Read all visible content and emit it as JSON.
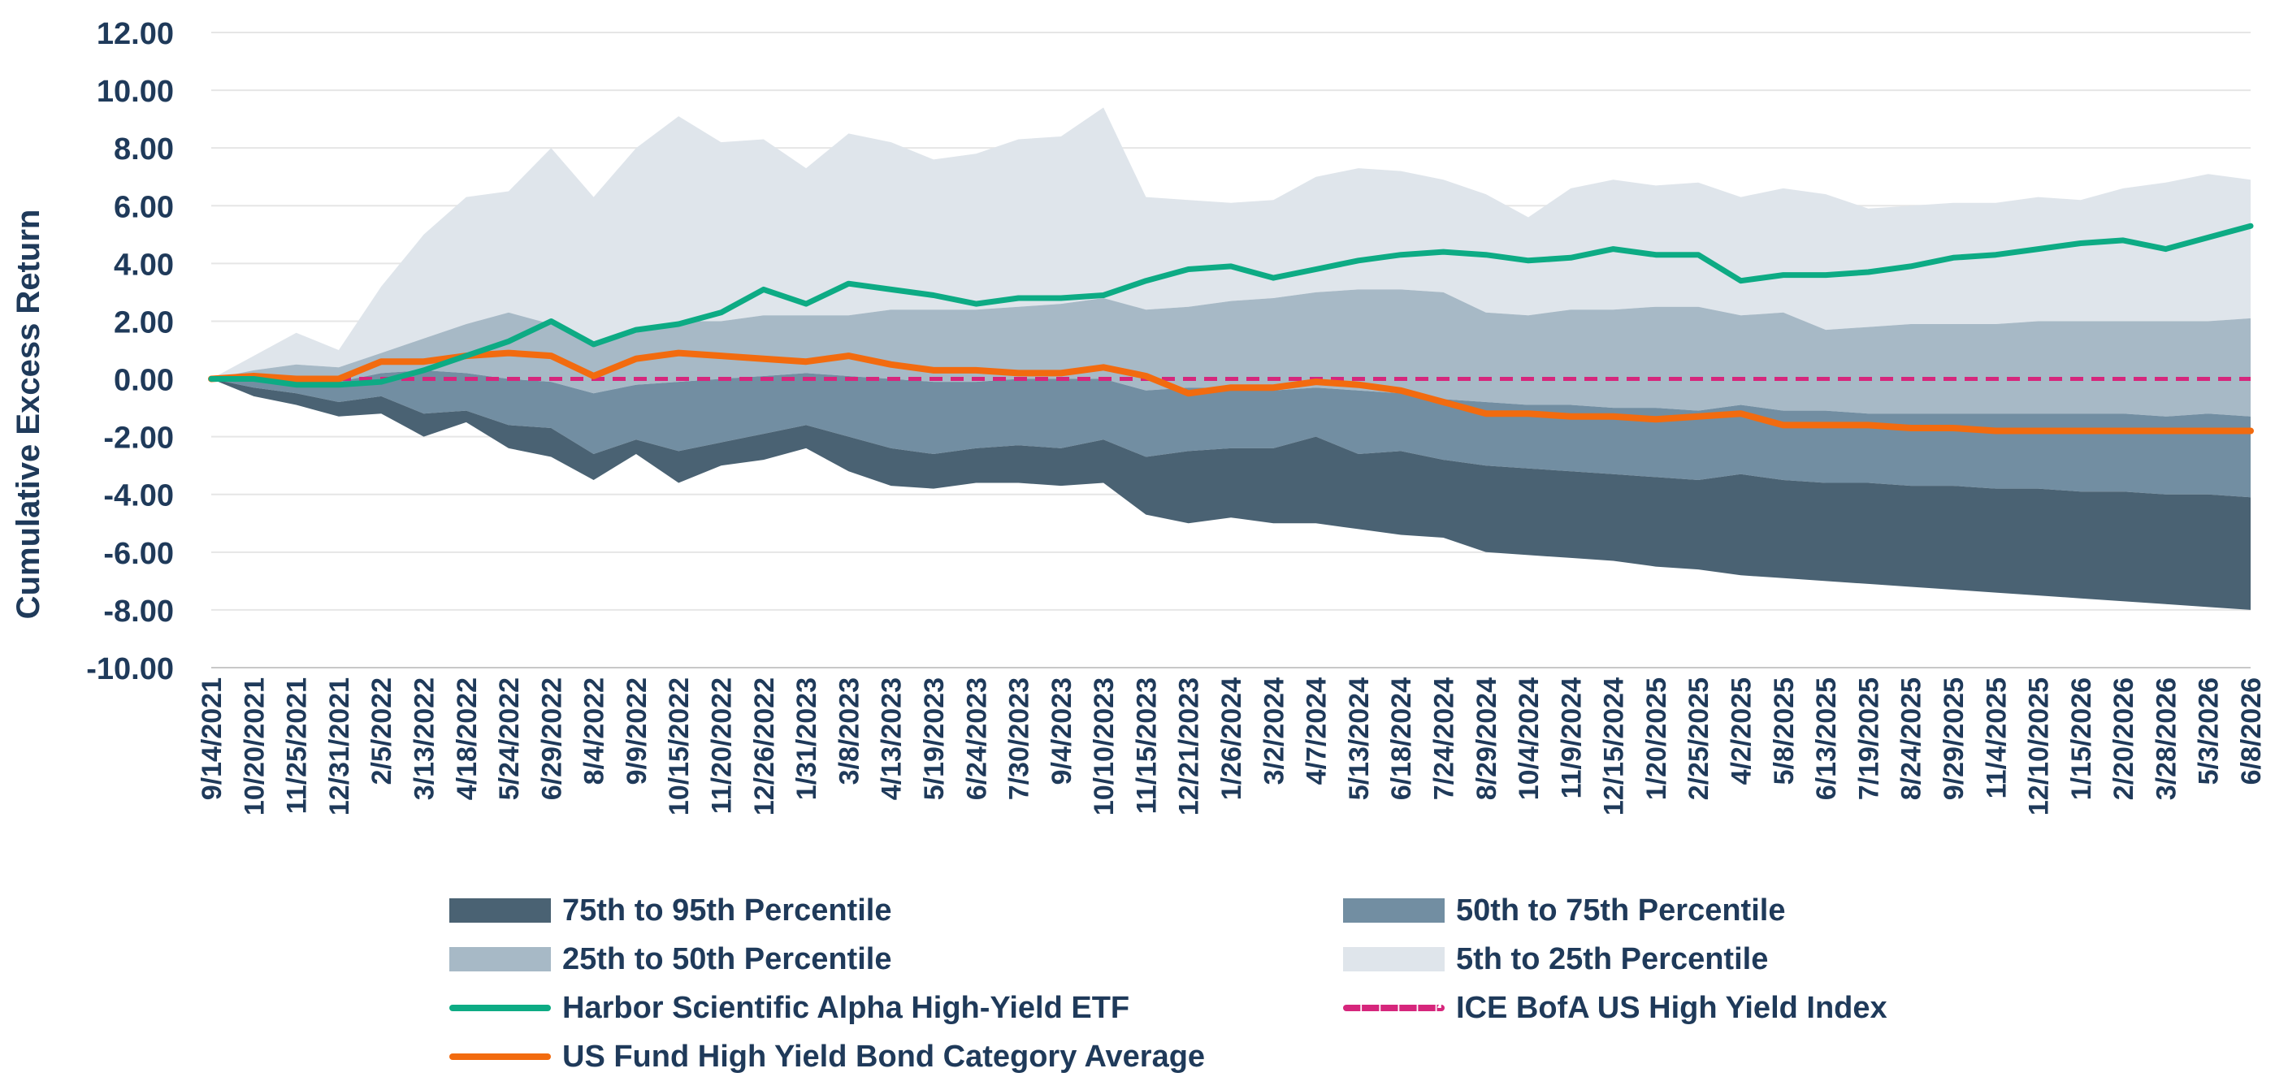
{
  "chart_data": {
    "type": "area",
    "ylabel": "Cumulative Excess Return",
    "xlabel": "",
    "ylim": [
      -10,
      12
    ],
    "y_ticks": [
      "12.00",
      "10.00",
      "8.00",
      "6.00",
      "4.00",
      "2.00",
      "0.00",
      "-2.00",
      "-4.00",
      "-6.00",
      "-8.00",
      "-10.00"
    ],
    "grid": "horizontal",
    "legend_position": "bottom",
    "x_tick_labels": [
      "9/14/2021",
      "10/20/2021",
      "11/25/2021",
      "12/31/2021",
      "2/5/2022",
      "3/13/2022",
      "4/18/2022",
      "5/24/2022",
      "6/29/2022",
      "8/4/2022",
      "9/9/2022",
      "10/15/2022",
      "11/20/2022",
      "12/26/2022",
      "1/31/2023",
      "3/8/2023",
      "4/13/2023",
      "5/19/2023",
      "6/24/2023",
      "7/30/2023",
      "9/4/2023",
      "10/10/2023",
      "11/15/2023",
      "12/21/2023",
      "1/26/2024",
      "3/2/2024",
      "4/7/2024",
      "5/13/2024",
      "6/18/2024",
      "7/24/2024",
      "8/29/2024",
      "10/4/2024",
      "11/9/2024",
      "12/15/2024",
      "1/20/2025",
      "2/25/2025",
      "4/2/2025",
      "5/8/2025",
      "6/13/2025",
      "7/19/2025",
      "8/24/2025",
      "9/29/2025",
      "11/4/2025",
      "12/10/2025",
      "1/15/2026",
      "2/20/2026",
      "3/28/2026",
      "5/3/2026",
      "6/8/2026"
    ],
    "colors": {
      "p75_95": "#4a6273",
      "p50_75": "#728ea2",
      "p25_50": "#a7b9c6",
      "p5_25": "#dfe5eb",
      "etf": "#0dab84",
      "category": "#f26b0f",
      "index": "#d6267c",
      "grid": "#e6e6e6",
      "axis": "#c8c8c8"
    },
    "series": [
      {
        "name": "95th Percentile",
        "values": [
          0.0,
          -0.6,
          -0.9,
          -1.3,
          -1.2,
          -2.0,
          -1.5,
          -2.4,
          -2.7,
          -3.5,
          -2.6,
          -3.6,
          -3.0,
          -2.8,
          -2.4,
          -3.2,
          -3.7,
          -3.8,
          -3.6,
          -3.6,
          -3.7,
          -3.6,
          -4.7,
          -5.0,
          -4.8,
          -5.0,
          -5.0,
          -5.2,
          -5.4,
          -5.5,
          -6.0,
          -6.1,
          -6.2,
          -6.3,
          -6.5,
          -6.6,
          -6.8,
          -6.9,
          -7.0,
          -7.1,
          -7.2,
          -7.3,
          -7.4,
          -7.5,
          -7.6,
          -7.7,
          -7.8,
          -7.9,
          -8.0
        ]
      },
      {
        "name": "75th Percentile",
        "values": [
          0.0,
          -0.3,
          -0.5,
          -0.8,
          -0.6,
          -1.2,
          -1.1,
          -1.6,
          -1.7,
          -2.6,
          -2.1,
          -2.5,
          -2.2,
          -1.9,
          -1.6,
          -2.0,
          -2.4,
          -2.6,
          -2.4,
          -2.3,
          -2.4,
          -2.1,
          -2.7,
          -2.5,
          -2.4,
          -2.4,
          -2.0,
          -2.6,
          -2.5,
          -2.8,
          -3.0,
          -3.1,
          -3.2,
          -3.3,
          -3.4,
          -3.5,
          -3.3,
          -3.5,
          -3.6,
          -3.6,
          -3.7,
          -3.7,
          -3.8,
          -3.8,
          -3.9,
          -3.9,
          -4.0,
          -4.0,
          -4.1
        ]
      },
      {
        "name": "50th Percentile",
        "values": [
          0.0,
          0.1,
          0.0,
          -0.1,
          0.2,
          0.3,
          0.2,
          0.0,
          -0.1,
          -0.5,
          -0.2,
          -0.1,
          0.0,
          0.1,
          0.2,
          0.1,
          0.0,
          -0.1,
          -0.1,
          0.0,
          0.0,
          0.0,
          -0.4,
          -0.3,
          -0.3,
          -0.4,
          -0.3,
          -0.4,
          -0.5,
          -0.7,
          -0.8,
          -0.9,
          -0.9,
          -1.0,
          -1.0,
          -1.1,
          -0.9,
          -1.1,
          -1.1,
          -1.2,
          -1.2,
          -1.2,
          -1.2,
          -1.2,
          -1.2,
          -1.2,
          -1.3,
          -1.2,
          -1.3
        ]
      },
      {
        "name": "25th Percentile",
        "values": [
          0.0,
          0.3,
          0.5,
          0.4,
          0.9,
          1.4,
          1.9,
          2.3,
          1.9,
          1.2,
          1.6,
          2.0,
          2.0,
          2.2,
          2.2,
          2.2,
          2.4,
          2.4,
          2.4,
          2.5,
          2.6,
          2.8,
          2.4,
          2.5,
          2.7,
          2.8,
          3.0,
          3.1,
          3.1,
          3.0,
          2.3,
          2.2,
          2.4,
          2.4,
          2.5,
          2.5,
          2.2,
          2.3,
          1.7,
          1.8,
          1.9,
          1.9,
          1.9,
          2.0,
          2.0,
          2.0,
          2.0,
          2.0,
          2.1
        ]
      },
      {
        "name": "5th Percentile",
        "values": [
          0.0,
          0.8,
          1.6,
          1.0,
          3.2,
          5.0,
          6.3,
          6.5,
          8.0,
          6.3,
          8.0,
          9.1,
          8.2,
          8.3,
          7.3,
          8.5,
          8.2,
          7.6,
          7.8,
          8.3,
          8.4,
          9.4,
          6.3,
          6.2,
          6.1,
          6.2,
          7.0,
          7.3,
          7.2,
          6.9,
          6.4,
          5.6,
          6.6,
          6.9,
          6.7,
          6.8,
          6.3,
          6.6,
          6.4,
          5.9,
          6.0,
          6.1,
          6.1,
          6.3,
          6.2,
          6.6,
          6.8,
          7.1,
          6.9
        ]
      },
      {
        "name": "Harbor Scientific Alpha High-Yield ETF",
        "values": [
          0.0,
          0.0,
          -0.2,
          -0.2,
          -0.1,
          0.3,
          0.8,
          1.3,
          2.0,
          1.2,
          1.7,
          1.9,
          2.3,
          3.1,
          2.6,
          3.3,
          3.1,
          2.9,
          2.6,
          2.8,
          2.8,
          2.9,
          3.4,
          3.8,
          3.9,
          3.5,
          3.8,
          4.1,
          4.3,
          4.4,
          4.3,
          4.1,
          4.2,
          4.5,
          4.3,
          4.3,
          3.4,
          3.6,
          3.6,
          3.7,
          3.9,
          4.2,
          4.3,
          4.5,
          4.7,
          4.8,
          4.5,
          4.9,
          5.3
        ]
      },
      {
        "name": "ICE BofA US High Yield Index",
        "values": [
          0.0,
          0.0,
          0.0,
          0.0,
          0.0,
          0.0,
          0.0,
          0.0,
          0.0,
          0.0,
          0.0,
          0.0,
          0.0,
          0.0,
          0.0,
          0.0,
          0.0,
          0.0,
          0.0,
          0.0,
          0.0,
          0.0,
          0.0,
          0.0,
          0.0,
          0.0,
          0.0,
          0.0,
          0.0,
          0.0,
          0.0,
          0.0,
          0.0,
          0.0,
          0.0,
          0.0,
          0.0,
          0.0,
          0.0,
          0.0,
          0.0,
          0.0,
          0.0,
          0.0,
          0.0,
          0.0,
          0.0,
          0.0,
          0.0
        ]
      },
      {
        "name": "US Fund High Yield Bond Category Average",
        "values": [
          0.0,
          0.1,
          0.0,
          0.0,
          0.6,
          0.6,
          0.8,
          0.9,
          0.8,
          0.1,
          0.7,
          0.9,
          0.8,
          0.7,
          0.6,
          0.8,
          0.5,
          0.3,
          0.3,
          0.2,
          0.2,
          0.4,
          0.1,
          -0.5,
          -0.3,
          -0.3,
          -0.1,
          -0.2,
          -0.4,
          -0.8,
          -1.2,
          -1.2,
          -1.3,
          -1.3,
          -1.4,
          -1.3,
          -1.2,
          -1.6,
          -1.6,
          -1.6,
          -1.7,
          -1.7,
          -1.8,
          -1.8,
          -1.8,
          -1.8,
          -1.8,
          -1.8,
          -1.8
        ]
      }
    ]
  },
  "legend": {
    "items": [
      {
        "label": "75th to 95th Percentile"
      },
      {
        "label": "50th to 75th Percentile"
      },
      {
        "label": "25th to 50th Percentile"
      },
      {
        "label": "5th to 25th Percentile"
      },
      {
        "label": "Harbor Scientific Alpha High-Yield ETF"
      },
      {
        "label": "ICE BofA US High Yield Index"
      },
      {
        "label": "US Fund High Yield Bond Category Average"
      }
    ]
  }
}
